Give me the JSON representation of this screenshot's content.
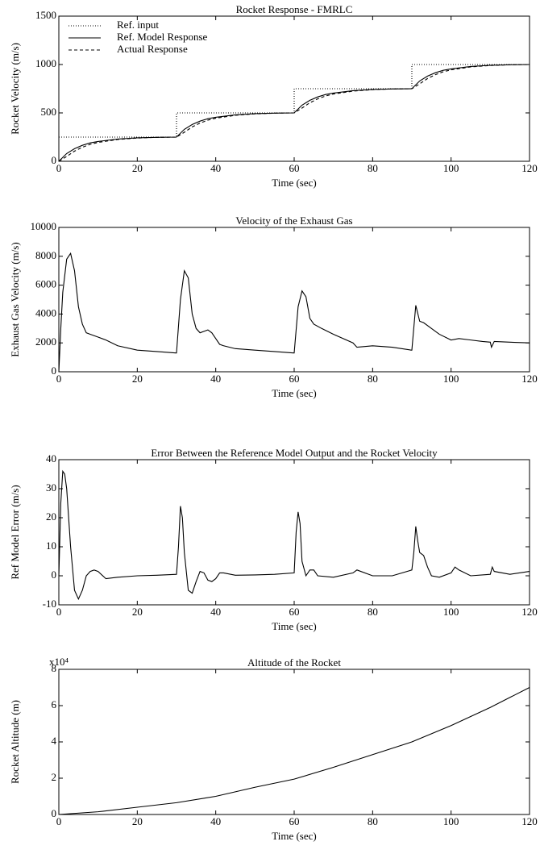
{
  "chart_data": [
    {
      "type": "line",
      "title": "Rocket Response - FMRLC",
      "x_label": "Time (sec)",
      "y_label": "Rocket Velocity (m/s)",
      "xlim": [
        0,
        120
      ],
      "xticks": [
        0,
        20,
        40,
        60,
        80,
        100,
        120
      ],
      "ylim": [
        0,
        1500
      ],
      "yticks": [
        0,
        500,
        1000,
        1500
      ],
      "legend": "upper left",
      "series": [
        {
          "name": "Ref. input",
          "color": "#000000",
          "style": "dotted",
          "x": [
            0,
            30,
            30,
            60,
            60,
            90,
            90,
            120
          ],
          "values": [
            250,
            250,
            500,
            500,
            750,
            750,
            1000,
            1000
          ]
        },
        {
          "name": "Ref. Model Response",
          "color": "#000000",
          "style": "solid",
          "x": [
            0,
            2,
            4,
            6,
            8,
            10,
            15,
            20,
            25,
            30,
            32,
            34,
            36,
            38,
            40,
            45,
            50,
            55,
            60,
            62,
            64,
            66,
            68,
            70,
            75,
            80,
            85,
            90,
            92,
            94,
            96,
            98,
            100,
            105,
            110,
            115,
            120
          ],
          "values": [
            0,
            80,
            130,
            165,
            190,
            205,
            230,
            242.5,
            247.5,
            250,
            330,
            380,
            415,
            440,
            455,
            480,
            492.5,
            497.5,
            500,
            580,
            630,
            665,
            690,
            705,
            730,
            742.5,
            747.5,
            750,
            830,
            880,
            915,
            940,
            955,
            980,
            992.5,
            997.5,
            1000
          ]
        },
        {
          "name": "Actual Response",
          "color": "#000000",
          "style": "dashed",
          "x": [
            0,
            2,
            4,
            6,
            8,
            10,
            15,
            20,
            25,
            30,
            32,
            34,
            36,
            38,
            40,
            45,
            50,
            55,
            60,
            62,
            64,
            66,
            68,
            70,
            75,
            80,
            85,
            90,
            92,
            94,
            96,
            98,
            100,
            105,
            110,
            115,
            120
          ],
          "values": [
            0,
            50,
            105,
            145,
            175,
            195,
            225,
            240,
            247.5,
            250,
            300,
            355,
            395,
            425,
            445,
            475,
            490,
            497.5,
            500,
            550,
            605,
            645,
            675,
            695,
            725,
            740,
            747.5,
            750,
            800,
            855,
            895,
            925,
            945,
            975,
            990,
            997.5,
            1000
          ]
        }
      ]
    },
    {
      "type": "line",
      "title": "Velocity of the Exhaust Gas",
      "x_label": "Time (sec)",
      "y_label": "Exhaust Gas Velocity (m/s)",
      "xlim": [
        0,
        120
      ],
      "xticks": [
        0,
        20,
        40,
        60,
        80,
        100,
        120
      ],
      "ylim": [
        0,
        10000
      ],
      "yticks": [
        0,
        2000,
        4000,
        6000,
        8000,
        10000
      ],
      "color": "#000000",
      "x": [
        0,
        0.5,
        1,
        2,
        3,
        4,
        5,
        6,
        7,
        8,
        10,
        12,
        15,
        20,
        25,
        29.8,
        30,
        31,
        32,
        33,
        34,
        35,
        36,
        37,
        38,
        39,
        40,
        41,
        42,
        45,
        50,
        55,
        59.8,
        60,
        61,
        62,
        63,
        64,
        65,
        67,
        70,
        75,
        76,
        80,
        85,
        89.8,
        90,
        91,
        92,
        93,
        95,
        97,
        100,
        102,
        105,
        108,
        110,
        110.3,
        111,
        115,
        120
      ],
      "values": [
        0,
        3000,
        5500,
        7800,
        8200,
        7000,
        4500,
        3300,
        2700,
        2600,
        2400,
        2200,
        1800,
        1500,
        1400,
        1300,
        1300,
        5000,
        7000,
        6500,
        4000,
        3000,
        2700,
        2800,
        2900,
        2700,
        2300,
        1900,
        1800,
        1600,
        1500,
        1400,
        1300,
        1300,
        4500,
        5600,
        5200,
        3700,
        3300,
        3000,
        2600,
        2000,
        1700,
        1800,
        1700,
        1500,
        1500,
        4600,
        3500,
        3400,
        3000,
        2600,
        2200,
        2300,
        2200,
        2100,
        2050,
        1700,
        2100,
        2050,
        2000
      ]
    },
    {
      "type": "line",
      "title": "Error Between the Reference Model Output and the Rocket Velocity",
      "x_label": "Time (sec)",
      "y_label": "Ref Model Error (m/s)",
      "xlim": [
        0,
        120
      ],
      "xticks": [
        0,
        20,
        40,
        60,
        80,
        100,
        120
      ],
      "ylim": [
        -10,
        40
      ],
      "yticks": [
        -10,
        0,
        10,
        20,
        30,
        40
      ],
      "color": "#000000",
      "x": [
        0,
        0.5,
        1,
        1.5,
        2,
        3,
        4,
        5,
        6,
        7,
        8,
        9,
        10,
        12,
        15,
        20,
        25,
        30,
        30.5,
        31,
        31.5,
        32,
        33,
        34,
        35,
        36,
        37,
        38,
        39,
        40,
        41,
        42,
        45,
        50,
        55,
        60,
        60.5,
        61,
        61.5,
        62,
        63,
        64,
        65,
        66,
        70,
        75,
        76,
        80,
        85,
        90,
        90.5,
        91,
        91.5,
        92,
        93,
        94,
        95,
        97,
        100,
        101,
        102,
        105,
        110,
        110.5,
        111,
        115,
        120
      ],
      "values": [
        0,
        25,
        36,
        35,
        30,
        10,
        -5,
        -8,
        -5,
        0,
        1.5,
        2,
        1.5,
        -1,
        -0.5,
        0,
        0.2,
        0.5,
        10,
        24,
        20,
        8,
        -5,
        -6,
        -2,
        1.5,
        1,
        -1.5,
        -2,
        -1,
        1,
        1,
        0.2,
        0.3,
        0.5,
        1,
        15,
        22,
        18,
        5,
        0,
        2,
        2,
        0,
        -0.5,
        1,
        2,
        0,
        0,
        2,
        8,
        17,
        12,
        8,
        7,
        3,
        0,
        -0.5,
        1,
        3,
        2,
        0,
        0.5,
        3,
        1.5,
        0.5,
        1.5
      ]
    },
    {
      "type": "line",
      "title": "Altitude of the Rocket",
      "x_label": "Time (sec)",
      "y_label": "Rocket Altitude (m)",
      "y_multiplier": "x10⁴",
      "xlim": [
        0,
        120
      ],
      "xticks": [
        0,
        20,
        40,
        60,
        80,
        100,
        120
      ],
      "ylim": [
        0,
        8
      ],
      "yticks": [
        0,
        2,
        4,
        6,
        8
      ],
      "color": "#000000",
      "x": [
        0,
        10,
        20,
        30,
        40,
        50,
        60,
        70,
        80,
        90,
        100,
        110,
        120
      ],
      "values": [
        0,
        0.15,
        0.4,
        0.65,
        1.0,
        1.5,
        1.95,
        2.6,
        3.3,
        4.0,
        4.9,
        5.9,
        7.0
      ]
    }
  ]
}
